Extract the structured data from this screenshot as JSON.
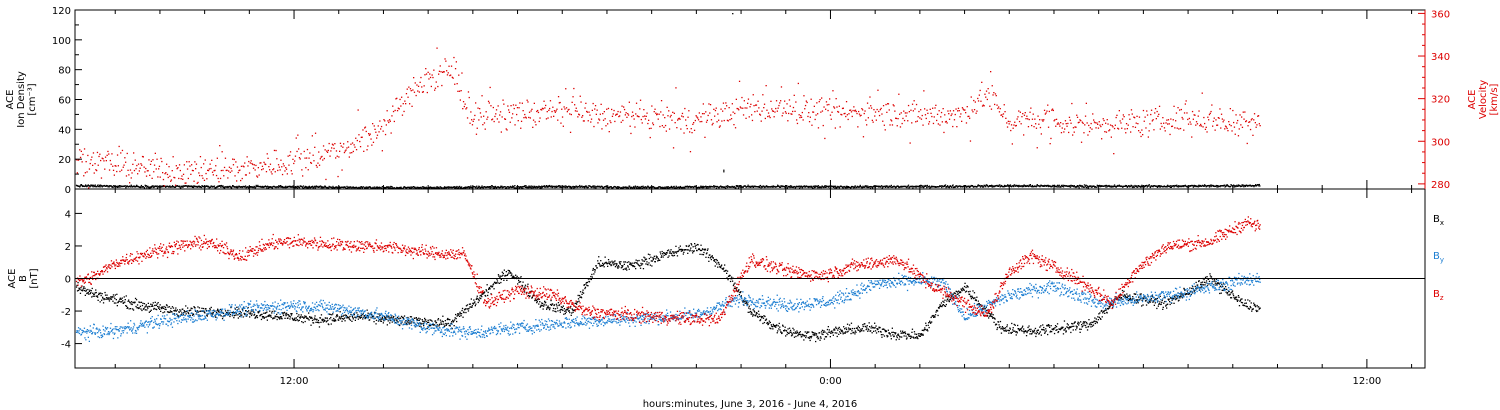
{
  "chart_data": [
    {
      "type": "scatter",
      "ylabel_lines": [
        "ACE",
        "Ion Density"
      ],
      "ylabel_unit": "[cm⁻³]",
      "ylabel_right_lines": [
        "ACE",
        "Velocity"
      ],
      "ylabel_right_unit": "[km/s]",
      "ylim": [
        0,
        120
      ],
      "yticks": [
        0,
        20,
        40,
        60,
        80,
        100,
        120
      ],
      "y2lim": [
        277.6,
        361.6
      ],
      "y2ticks": [
        280,
        300,
        320,
        340,
        360
      ],
      "series": [
        {
          "color": "#000000",
          "axis": "left",
          "knots": [
            [
              7.1,
              2.5
            ],
            [
              9,
              2.0
            ],
            [
              12,
              1.8
            ],
            [
              14,
              1.2
            ],
            [
              16,
              1.5
            ],
            [
              18,
              2.0
            ],
            [
              20,
              1.5
            ],
            [
              22,
              2.0
            ],
            [
              24,
              1.8
            ],
            [
              26,
              2.0
            ],
            [
              28,
              2.5
            ],
            [
              30,
              2.2
            ],
            [
              32,
              2.3
            ],
            [
              33.6,
              2.8
            ]
          ],
          "noise": 0.6
        },
        {
          "color": "#dd0000",
          "axis": "right",
          "knots": [
            [
              7.1,
              293
            ],
            [
              8,
              289
            ],
            [
              9,
              287
            ],
            [
              10,
              286
            ],
            [
              11,
              288
            ],
            [
              12,
              291
            ],
            [
              13,
              296
            ],
            [
              13.5,
              301
            ],
            [
              14,
              308
            ],
            [
              14.8,
              327
            ],
            [
              15.5,
              333
            ],
            [
              16,
              312
            ],
            [
              17,
              313
            ],
            [
              18,
              314
            ],
            [
              19,
              312
            ],
            [
              20,
              311
            ],
            [
              21,
              310
            ],
            [
              22,
              315
            ],
            [
              23,
              316
            ],
            [
              24,
              313
            ],
            [
              25,
              314
            ],
            [
              26,
              312
            ],
            [
              27,
              313
            ],
            [
              27.5,
              323
            ],
            [
              28,
              310
            ],
            [
              29,
              309
            ],
            [
              30,
              308
            ],
            [
              31,
              309
            ],
            [
              32,
              311
            ],
            [
              33,
              310
            ],
            [
              33.6,
              311
            ]
          ],
          "noise": 5
        }
      ],
      "outliers_density": [
        [
          21.8,
          118
        ],
        [
          21.6,
          13
        ],
        [
          21.6,
          12
        ]
      ]
    },
    {
      "type": "scatter",
      "ylabel_lines": [
        "ACE",
        "B"
      ],
      "ylabel_unit": "[nT]",
      "ylim": [
        -5.5,
        5.5
      ],
      "yticks": [
        -4,
        -2,
        0,
        2,
        4
      ],
      "zero_line": true,
      "series": [
        {
          "name": "Bx",
          "color": "#000000",
          "knots": [
            [
              7.1,
              -0.5
            ],
            [
              7.6,
              -1.0
            ],
            [
              8.5,
              -1.6
            ],
            [
              9.5,
              -2.0
            ],
            [
              10.5,
              -2.0
            ],
            [
              11.5,
              -2.2
            ],
            [
              12.5,
              -2.5
            ],
            [
              13.5,
              -2.3
            ],
            [
              14.5,
              -2.6
            ],
            [
              15.5,
              -2.7
            ],
            [
              16.2,
              -1.0
            ],
            [
              16.8,
              0.5
            ],
            [
              17.5,
              -1.5
            ],
            [
              18.2,
              -2.0
            ],
            [
              18.8,
              1.0
            ],
            [
              19.5,
              0.8
            ],
            [
              20.3,
              1.5
            ],
            [
              21,
              2.0
            ],
            [
              21.6,
              0.7
            ],
            [
              22.2,
              -2.0
            ],
            [
              22.8,
              -3.0
            ],
            [
              23.5,
              -3.5
            ],
            [
              24.2,
              -3.2
            ],
            [
              24.8,
              -3.0
            ],
            [
              25.5,
              -3.4
            ],
            [
              26,
              -3.5
            ],
            [
              26.5,
              -1.5
            ],
            [
              27,
              -0.5
            ],
            [
              27.8,
              -3.0
            ],
            [
              28.5,
              -3.2
            ],
            [
              29.2,
              -3.0
            ],
            [
              29.8,
              -2.8
            ],
            [
              30.5,
              -1.0
            ],
            [
              31.5,
              -1.5
            ],
            [
              32.5,
              0.0
            ],
            [
              33.2,
              -1.5
            ],
            [
              33.6,
              -1.8
            ]
          ],
          "noise": 0.25
        },
        {
          "name": "By",
          "color": "#1e7fd2",
          "knots": [
            [
              7.1,
              -3.3
            ],
            [
              8,
              -3.2
            ],
            [
              9,
              -2.6
            ],
            [
              10,
              -2.2
            ],
            [
              11,
              -1.8
            ],
            [
              12,
              -1.6
            ],
            [
              13,
              -1.8
            ],
            [
              14,
              -2.3
            ],
            [
              15,
              -3.0
            ],
            [
              16,
              -3.3
            ],
            [
              17,
              -3.0
            ],
            [
              18,
              -2.7
            ],
            [
              19,
              -2.5
            ],
            [
              20,
              -2.4
            ],
            [
              21,
              -2.2
            ],
            [
              22,
              -1.2
            ],
            [
              23,
              -1.6
            ],
            [
              24,
              -1.4
            ],
            [
              25,
              -0.3
            ],
            [
              26,
              -0.1
            ],
            [
              26.5,
              -0.2
            ],
            [
              27,
              -2.3
            ],
            [
              28,
              -1.0
            ],
            [
              29,
              -0.4
            ],
            [
              30,
              -1.5
            ],
            [
              31,
              -1.2
            ],
            [
              32,
              -0.8
            ],
            [
              33,
              -0.2
            ],
            [
              33.6,
              0.1
            ]
          ],
          "noise": 0.3
        },
        {
          "name": "Bz",
          "color": "#dd0000",
          "knots": [
            [
              7.1,
              -0.2
            ],
            [
              7.5,
              0.1
            ],
            [
              8,
              1.0
            ],
            [
              9,
              1.8
            ],
            [
              10,
              2.3
            ],
            [
              10.8,
              1.4
            ],
            [
              11.5,
              2.2
            ],
            [
              12,
              2.3
            ],
            [
              13,
              2.1
            ],
            [
              14,
              2.0
            ],
            [
              15,
              1.6
            ],
            [
              15.8,
              1.5
            ],
            [
              16.3,
              -1.5
            ],
            [
              17,
              -0.7
            ],
            [
              17.8,
              -1.0
            ],
            [
              18.5,
              -2.0
            ],
            [
              19.5,
              -2.2
            ],
            [
              20.5,
              -2.4
            ],
            [
              21.5,
              -2.5
            ],
            [
              22.2,
              1.2
            ],
            [
              23,
              0.5
            ],
            [
              23.8,
              0.2
            ],
            [
              24.5,
              0.8
            ],
            [
              25.5,
              1.2
            ],
            [
              26.3,
              -0.5
            ],
            [
              27,
              -1.5
            ],
            [
              27.5,
              -2.2
            ],
            [
              28,
              0.5
            ],
            [
              28.5,
              1.4
            ],
            [
              29.5,
              0.0
            ],
            [
              30.3,
              -1.5
            ],
            [
              30.8,
              0.5
            ],
            [
              31.5,
              2.0
            ],
            [
              32.5,
              2.3
            ],
            [
              33.3,
              3.5
            ],
            [
              33.6,
              3.2
            ]
          ],
          "noise": 0.3
        }
      ],
      "legend": [
        "Bx",
        "By",
        "Bz"
      ],
      "legend_placement": "right"
    }
  ],
  "x_axis": {
    "xlim": [
      7.1,
      37.3
    ],
    "major_ticks": [
      12,
      24,
      36
    ],
    "tick_labels": [
      "12:00",
      "0:00",
      "12:00"
    ],
    "minor_tick_step": 1,
    "data_end": 33.6,
    "xlabel": "hours:minutes, June  3, 2016 - June  4, 2016"
  }
}
